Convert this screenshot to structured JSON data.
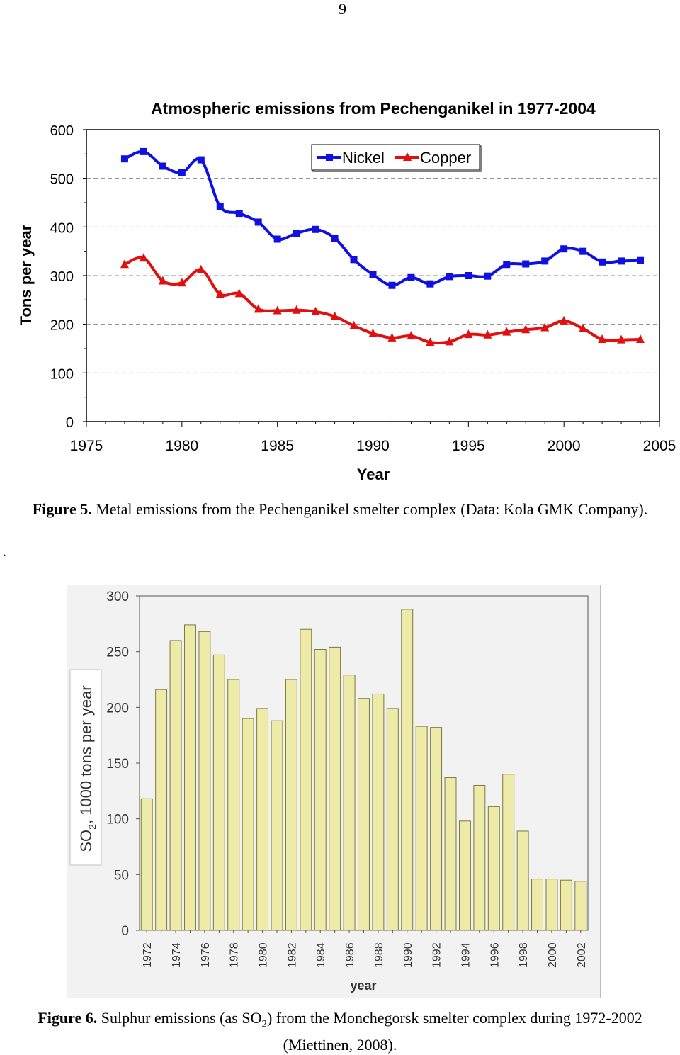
{
  "page": {
    "number": "9",
    "stray_mark": "."
  },
  "figure5": {
    "caption_label": "Figure 5.",
    "caption_text": "Metal emissions from the Pechenganikel smelter complex (Data: Kola GMK Company)."
  },
  "figure6": {
    "caption_label": "Figure 6.",
    "caption_pre": "Sulphur emissions (as SO",
    "caption_sub": "2",
    "caption_post": ") from the Monchegorsk smelter complex during 1972-2002 (Miettinen, 2008)."
  },
  "colors": {
    "nickel": "#1010e0",
    "copper": "#e01010",
    "bar_fill": "#eeeaa8",
    "bar_stroke": "#7a7a40"
  },
  "chart_data": [
    {
      "type": "line",
      "title": "Atmospheric emissions from Pechenganikel in 1977-2004",
      "xlabel": "Year",
      "ylabel": "Tons per year",
      "xlim": [
        1975,
        2005
      ],
      "ylim": [
        0,
        600
      ],
      "xticks": [
        1975,
        1980,
        1985,
        1990,
        1995,
        2000,
        2005
      ],
      "yticks": [
        0,
        100,
        200,
        300,
        400,
        500,
        600
      ],
      "grid": true,
      "legend_position": "top-right",
      "x": [
        1977,
        1978,
        1979,
        1980,
        1981,
        1982,
        1983,
        1984,
        1985,
        1986,
        1987,
        1988,
        1989,
        1990,
        1991,
        1992,
        1993,
        1994,
        1995,
        1996,
        1997,
        1998,
        1999,
        2000,
        2001,
        2002,
        2003,
        2004
      ],
      "series": [
        {
          "name": "Nickel",
          "values": [
            540,
            555,
            525,
            512,
            538,
            442,
            428,
            410,
            375,
            387,
            395,
            377,
            333,
            302,
            280,
            296,
            283,
            298,
            300,
            299,
            323,
            324,
            330,
            355,
            350,
            328,
            330,
            331
          ]
        },
        {
          "name": "Copper",
          "values": [
            323,
            336,
            289,
            285,
            312,
            262,
            263,
            231,
            228,
            229,
            226,
            216,
            197,
            181,
            172,
            176,
            163,
            164,
            179,
            178,
            184,
            189,
            193,
            207,
            191,
            169,
            168,
            169
          ]
        }
      ]
    },
    {
      "type": "bar",
      "title": "",
      "xlabel": "year",
      "ylabel_pre": "SO",
      "ylabel_sub": "2",
      "ylabel_post": ", 1000 tons per year",
      "ylim": [
        0,
        300
      ],
      "yticks": [
        0,
        50,
        100,
        150,
        200,
        250,
        300
      ],
      "grid": false,
      "categories": [
        "1972",
        "1973",
        "1974",
        "1975",
        "1976",
        "1977",
        "1978",
        "1979",
        "1980",
        "1981",
        "1982",
        "1983",
        "1984",
        "1985",
        "1986",
        "1987",
        "1988",
        "1989",
        "1990",
        "1991",
        "1992",
        "1993",
        "1994",
        "1995",
        "1996",
        "1997",
        "1998",
        "1999",
        "2000",
        "2001",
        "2002"
      ],
      "tick_labels": [
        "1972",
        "1974",
        "1976",
        "1978",
        "1980",
        "1982",
        "1984",
        "1986",
        "1988",
        "1990",
        "1992",
        "1994",
        "1996",
        "1998",
        "2000",
        "2002"
      ],
      "values": [
        118,
        216,
        260,
        274,
        268,
        247,
        225,
        190,
        199,
        188,
        225,
        270,
        252,
        254,
        229,
        208,
        212,
        199,
        288,
        183,
        182,
        137,
        98,
        130,
        111,
        140,
        89,
        46,
        46,
        45,
        44
      ]
    }
  ]
}
